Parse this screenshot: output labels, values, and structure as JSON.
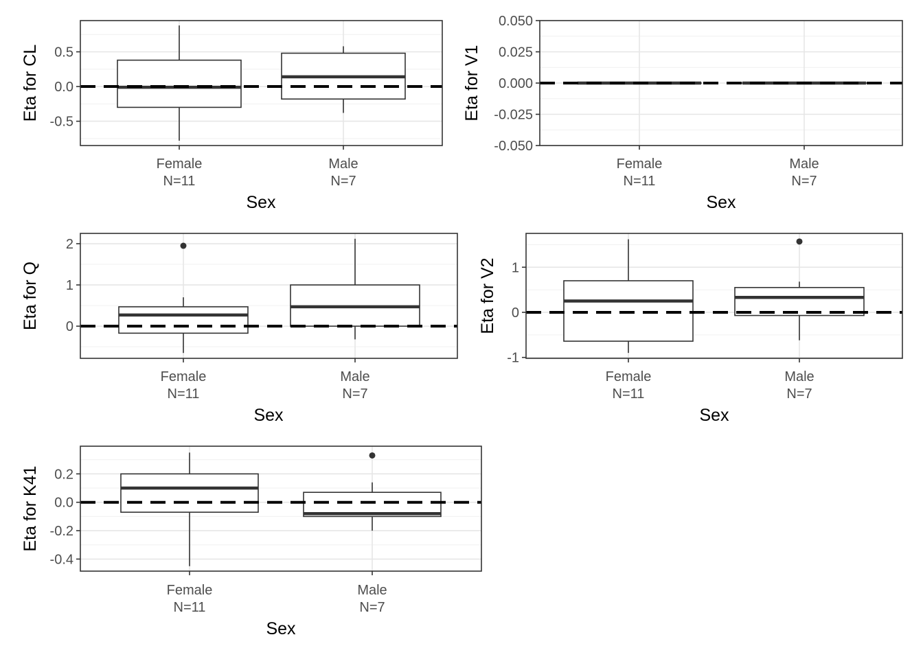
{
  "chart_data": [
    {
      "type": "boxplot",
      "xlabel": "Sex",
      "ylabel": "Eta for CL",
      "categories": [
        "Female\nN=11",
        "Male\nN=7"
      ],
      "ylim": [
        -0.85,
        0.95
      ],
      "yticks": [
        -0.5,
        0.0,
        0.5
      ],
      "yticklabels": [
        "-0.5",
        "0.0",
        "0.5"
      ],
      "reference_line": 0,
      "boxes": [
        {
          "lower_whisker": -0.78,
          "q1": -0.3,
          "median": -0.01,
          "q3": 0.38,
          "upper_whisker": 0.88,
          "outliers": []
        },
        {
          "lower_whisker": -0.38,
          "q1": -0.18,
          "median": 0.14,
          "q3": 0.48,
          "upper_whisker": 0.58,
          "outliers": []
        }
      ]
    },
    {
      "type": "boxplot",
      "xlabel": "Sex",
      "ylabel": "Eta for V1",
      "categories": [
        "Female\nN=11",
        "Male\nN=7"
      ],
      "ylim": [
        -0.05,
        0.05
      ],
      "yticks": [
        -0.05,
        -0.025,
        0.0,
        0.025,
        0.05
      ],
      "yticklabels": [
        "-0.050",
        "-0.025",
        "0.000",
        "0.025",
        "0.050"
      ],
      "reference_line": 0,
      "boxes": [
        {
          "lower_whisker": 0,
          "q1": 0,
          "median": 0,
          "q3": 0,
          "upper_whisker": 0,
          "outliers": []
        },
        {
          "lower_whisker": 0,
          "q1": 0,
          "median": 0,
          "q3": 0,
          "upper_whisker": 0,
          "outliers": []
        }
      ]
    },
    {
      "type": "boxplot",
      "xlabel": "Sex",
      "ylabel": "Eta for Q",
      "categories": [
        "Female\nN=11",
        "Male\nN=7"
      ],
      "ylim": [
        -0.78,
        2.25
      ],
      "yticks": [
        0,
        1,
        2
      ],
      "yticklabels": [
        "0",
        "1",
        "2"
      ],
      "reference_line": 0,
      "boxes": [
        {
          "lower_whisker": -0.65,
          "q1": -0.17,
          "median": 0.27,
          "q3": 0.47,
          "upper_whisker": 0.7,
          "outliers": [
            1.95
          ]
        },
        {
          "lower_whisker": -0.32,
          "q1": 0.0,
          "median": 0.47,
          "q3": 1.0,
          "upper_whisker": 2.12,
          "outliers": []
        }
      ]
    },
    {
      "type": "boxplot",
      "xlabel": "Sex",
      "ylabel": "Eta for V2",
      "categories": [
        "Female\nN=11",
        "Male\nN=7"
      ],
      "ylim": [
        -1.02,
        1.75
      ],
      "yticks": [
        -1,
        0,
        1
      ],
      "yticklabels": [
        "-1",
        "0",
        "1"
      ],
      "reference_line": 0,
      "boxes": [
        {
          "lower_whisker": -0.9,
          "q1": -0.64,
          "median": 0.25,
          "q3": 0.7,
          "upper_whisker": 1.62,
          "outliers": []
        },
        {
          "lower_whisker": -0.62,
          "q1": -0.07,
          "median": 0.33,
          "q3": 0.55,
          "upper_whisker": 0.68,
          "outliers": [
            1.57
          ]
        }
      ]
    },
    {
      "type": "boxplot",
      "xlabel": "Sex",
      "ylabel": "Eta for K41",
      "categories": [
        "Female\nN=11",
        "Male\nN=7"
      ],
      "ylim": [
        -0.485,
        0.395
      ],
      "yticks": [
        -0.4,
        -0.2,
        0.0,
        0.2
      ],
      "yticklabels": [
        "-0.4",
        "-0.2",
        "0.0",
        "0.2"
      ],
      "reference_line": 0,
      "boxes": [
        {
          "lower_whisker": -0.45,
          "q1": -0.07,
          "median": 0.1,
          "q3": 0.2,
          "upper_whisker": 0.35,
          "outliers": []
        },
        {
          "lower_whisker": -0.2,
          "q1": -0.1,
          "median": -0.08,
          "q3": 0.07,
          "upper_whisker": 0.14,
          "outliers": [
            0.33
          ]
        }
      ]
    }
  ]
}
